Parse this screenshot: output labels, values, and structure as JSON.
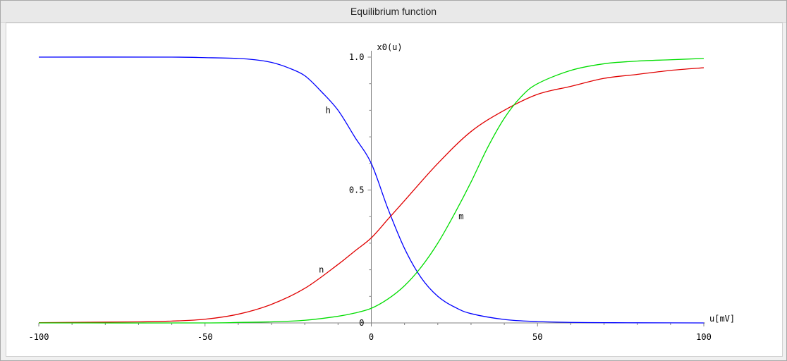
{
  "window": {
    "title": "Equilibrium function"
  },
  "chart_data": {
    "type": "line",
    "title": "Equilibrium function",
    "xlabel": "u[mV]",
    "ylabel": "x0(u)",
    "xlim": [
      -100,
      100
    ],
    "ylim": [
      0,
      1
    ],
    "x_ticks": [
      -100,
      -50,
      0,
      50,
      100
    ],
    "y_ticks": [
      0,
      0.5,
      1.0
    ],
    "x_tick_labels": [
      "-100",
      "-50",
      "0",
      "50",
      "100"
    ],
    "y_tick_labels": [
      "0",
      "0.5",
      "1.0"
    ],
    "grid": false,
    "series": [
      {
        "name": "h",
        "color": "#0000ff",
        "x": [
          -100,
          -60,
          -50,
          -40,
          -35,
          -30,
          -25,
          -20,
          -15,
          -10,
          -5,
          0,
          5,
          10,
          15,
          20,
          25,
          30,
          40,
          50,
          60,
          70,
          80,
          100
        ],
        "y": [
          1.0,
          1.0,
          0.998,
          0.995,
          0.99,
          0.98,
          0.96,
          0.93,
          0.87,
          0.8,
          0.7,
          0.6,
          0.43,
          0.28,
          0.17,
          0.1,
          0.06,
          0.035,
          0.013,
          0.005,
          0.002,
          0.001,
          0.0005,
          0.0
        ]
      },
      {
        "name": "n",
        "color": "#e00000",
        "x": [
          -100,
          -70,
          -60,
          -50,
          -40,
          -30,
          -20,
          -10,
          -5,
          0,
          5,
          10,
          20,
          30,
          40,
          50,
          60,
          70,
          80,
          90,
          100
        ],
        "y": [
          0.001,
          0.004,
          0.007,
          0.014,
          0.033,
          0.07,
          0.13,
          0.22,
          0.27,
          0.32,
          0.39,
          0.46,
          0.6,
          0.72,
          0.8,
          0.86,
          0.89,
          0.92,
          0.935,
          0.95,
          0.96
        ]
      },
      {
        "name": "m",
        "color": "#00dd00",
        "x": [
          -100,
          -50,
          -40,
          -30,
          -20,
          -10,
          -5,
          0,
          5,
          10,
          15,
          20,
          25,
          30,
          35,
          40,
          45,
          50,
          60,
          70,
          80,
          90,
          100
        ],
        "y": [
          0.0,
          0.0,
          0.002,
          0.004,
          0.01,
          0.025,
          0.037,
          0.055,
          0.09,
          0.14,
          0.21,
          0.3,
          0.41,
          0.53,
          0.66,
          0.77,
          0.85,
          0.9,
          0.95,
          0.975,
          0.985,
          0.99,
          0.995
        ]
      }
    ],
    "annotations": [
      {
        "text": "h",
        "x": -13,
        "y": 0.8,
        "color": "#0000ff"
      },
      {
        "text": "n",
        "x": -15,
        "y": 0.2,
        "color": "#e00000"
      },
      {
        "text": "m",
        "x": 27,
        "y": 0.4,
        "color": "#00dd00"
      }
    ]
  }
}
